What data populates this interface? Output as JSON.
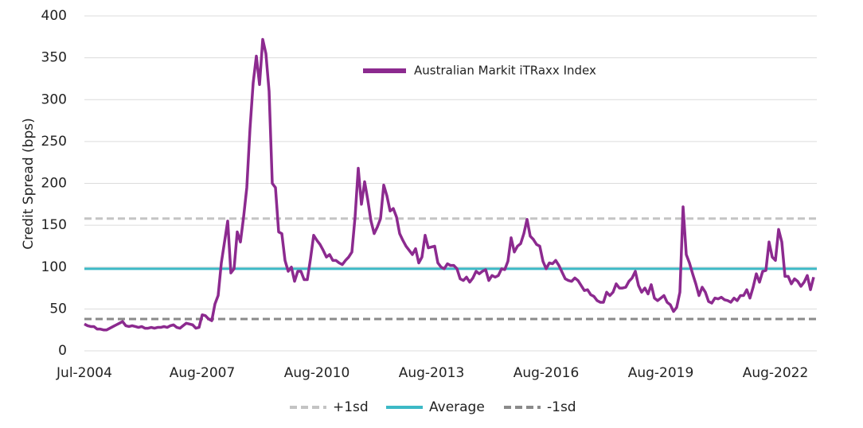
{
  "chart_data": {
    "type": "line",
    "y_label": "Credit Spread (bps)",
    "ylim": [
      0,
      400
    ],
    "yticks": [
      0,
      50,
      100,
      150,
      200,
      250,
      300,
      350,
      400
    ],
    "grid": true,
    "categories": [
      "Jul-2004",
      null,
      null,
      null,
      null,
      null,
      null,
      null,
      null,
      null,
      null,
      null,
      null,
      null,
      null,
      null,
      null,
      null,
      null,
      null,
      null,
      null,
      null,
      null,
      null,
      null,
      null,
      null,
      null,
      null,
      null,
      null,
      null,
      null,
      null,
      null,
      null,
      "Aug-2007",
      null,
      null,
      null,
      null,
      null,
      null,
      null,
      null,
      null,
      null,
      null,
      null,
      null,
      null,
      null,
      null,
      null,
      null,
      null,
      null,
      null,
      null,
      null,
      null,
      null,
      null,
      null,
      null,
      null,
      null,
      null,
      null,
      null,
      null,
      null,
      "Aug-2010",
      null,
      null,
      null,
      null,
      null,
      null,
      null,
      null,
      null,
      null,
      null,
      null,
      null,
      null,
      null,
      null,
      null,
      null,
      null,
      null,
      null,
      null,
      null,
      null,
      null,
      null,
      null,
      null,
      null,
      null,
      null,
      null,
      null,
      null,
      null,
      "Aug-2013",
      null,
      null,
      null,
      null,
      null,
      null,
      null,
      null,
      null,
      null,
      null,
      null,
      null,
      null,
      null,
      null,
      null,
      null,
      null,
      null,
      null,
      null,
      null,
      null,
      null,
      null,
      null,
      null,
      null,
      null,
      null,
      null,
      null,
      null,
      null,
      "Aug-2016",
      null,
      null,
      null,
      null,
      null,
      null,
      null,
      null,
      null,
      null,
      null,
      null,
      null,
      null,
      null,
      null,
      null,
      null,
      null,
      null,
      null,
      null,
      null,
      null,
      null,
      null,
      null,
      null,
      null,
      null,
      null,
      null,
      null,
      null,
      null,
      "Aug-2019",
      null,
      null,
      null,
      null,
      null,
      null,
      null,
      null,
      null,
      null,
      null,
      null,
      null,
      null,
      null,
      null,
      null,
      null,
      null,
      null,
      null,
      null,
      null,
      null,
      null,
      null,
      null,
      null,
      null,
      null,
      null,
      null,
      null,
      null,
      null,
      "Aug-2022",
      null,
      null,
      null,
      null,
      null,
      null,
      null,
      null,
      null,
      null,
      null,
      null
    ],
    "series": [
      {
        "name": "Australian Markit iTRaxx Index",
        "color": "#8c2a8f",
        "values": [
          32,
          30,
          29,
          29,
          26,
          26,
          25,
          25,
          27,
          29,
          31,
          33,
          35,
          30,
          29,
          30,
          29,
          28,
          29,
          27,
          27,
          28,
          27,
          28,
          28,
          29,
          28,
          30,
          31,
          28,
          27,
          30,
          33,
          32,
          31,
          27,
          28,
          43,
          42,
          38,
          36,
          56,
          66,
          105,
          130,
          155,
          93,
          98,
          142,
          130,
          160,
          195,
          265,
          320,
          352,
          318,
          372,
          355,
          310,
          200,
          195,
          142,
          140,
          108,
          95,
          100,
          83,
          95,
          95,
          85,
          85,
          110,
          138,
          132,
          127,
          120,
          112,
          115,
          108,
          108,
          105,
          103,
          108,
          112,
          118,
          160,
          218,
          175,
          202,
          180,
          155,
          140,
          148,
          158,
          198,
          185,
          167,
          170,
          160,
          140,
          132,
          125,
          120,
          115,
          122,
          105,
          112,
          138,
          123,
          124,
          125,
          105,
          100,
          98,
          104,
          102,
          102,
          98,
          86,
          84,
          88,
          82,
          87,
          95,
          92,
          95,
          97,
          84,
          90,
          88,
          90,
          98,
          97,
          107,
          135,
          118,
          125,
          128,
          140,
          157,
          137,
          133,
          127,
          125,
          107,
          98,
          105,
          104,
          108,
          102,
          94,
          86,
          84,
          83,
          87,
          84,
          78,
          72,
          73,
          67,
          65,
          60,
          58,
          58,
          70,
          66,
          70,
          80,
          75,
          75,
          76,
          83,
          87,
          95,
          78,
          70,
          75,
          68,
          79,
          63,
          60,
          63,
          66,
          58,
          55,
          47,
          52,
          70,
          172,
          115,
          105,
          92,
          80,
          66,
          76,
          70,
          59,
          57,
          63,
          62,
          64,
          61,
          60,
          58,
          63,
          60,
          66,
          66,
          73,
          63,
          76,
          92,
          82,
          95,
          96,
          130,
          112,
          108,
          145,
          130,
          89,
          89,
          80,
          86,
          83,
          77,
          82,
          90,
          73,
          88
        ]
      }
    ],
    "reference_lines": [
      {
        "name": "+1sd",
        "value": 158,
        "color": "#c4c4c4",
        "dashed": true
      },
      {
        "name": "Average",
        "value": 98,
        "color": "#3cb9c6",
        "dashed": false
      },
      {
        "name": "-1sd",
        "value": 38,
        "color": "#8a8a8a",
        "dashed": true
      }
    ]
  }
}
